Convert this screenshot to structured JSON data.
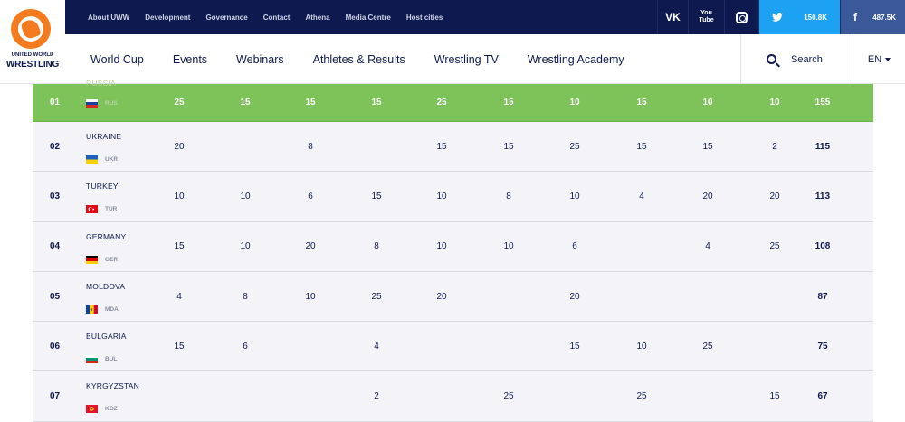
{
  "header": {
    "logo_small": "UNITED WORLD",
    "logo_big": "WRESTLING",
    "top_links": [
      "About UWW",
      "Development",
      "Governance",
      "Contact",
      "Athena",
      "Media Centre",
      "Host cities"
    ],
    "social": {
      "vk_label": "VK",
      "youtube_label_1": "You",
      "youtube_label_2": "Tube",
      "twitter_icon": "twitter-icon",
      "twitter_count": "150.8K",
      "facebook_label": "f",
      "facebook_count": "487.5K"
    }
  },
  "nav": {
    "items": [
      "World Cup",
      "Events",
      "Webinars",
      "Athletes & Results",
      "Wrestling TV",
      "Wrestling Academy"
    ],
    "search_label": "Search",
    "lang_label": "EN"
  },
  "table": {
    "rows": [
      {
        "rank": "01",
        "country": "RUSSIA",
        "code": "RUS",
        "flag": "RUS",
        "scores": [
          "25",
          "15",
          "15",
          "15",
          "25",
          "15",
          "10",
          "15",
          "10",
          "10"
        ],
        "total": "155"
      },
      {
        "rank": "02",
        "country": "UKRAINE",
        "code": "UKR",
        "flag": "UKR",
        "scores": [
          "20",
          "",
          "8",
          "",
          "15",
          "15",
          "25",
          "15",
          "15",
          "2"
        ],
        "total": "115"
      },
      {
        "rank": "03",
        "country": "TURKEY",
        "code": "TUR",
        "flag": "TUR",
        "scores": [
          "10",
          "10",
          "6",
          "15",
          "10",
          "8",
          "10",
          "4",
          "20",
          "20"
        ],
        "total": "113"
      },
      {
        "rank": "04",
        "country": "GERMANY",
        "code": "GER",
        "flag": "GER",
        "scores": [
          "15",
          "10",
          "20",
          "8",
          "10",
          "10",
          "6",
          "",
          "4",
          "25"
        ],
        "total": "108"
      },
      {
        "rank": "05",
        "country": "MOLDOVA",
        "code": "MDA",
        "flag": "MDA",
        "scores": [
          "4",
          "8",
          "10",
          "25",
          "20",
          "",
          "20",
          "",
          "",
          ""
        ],
        "total": "87"
      },
      {
        "rank": "06",
        "country": "BULGARIA",
        "code": "BUL",
        "flag": "BUL",
        "scores": [
          "15",
          "6",
          "",
          "4",
          "",
          "",
          "15",
          "10",
          "25",
          ""
        ],
        "total": "75"
      },
      {
        "rank": "07",
        "country": "KYRGYZSTAN",
        "code": "KGZ",
        "flag": "KGZ",
        "scores": [
          "",
          "",
          "",
          "2",
          "",
          "25",
          "",
          "25",
          "",
          "15"
        ],
        "total": "67"
      }
    ]
  },
  "colors": {
    "navy": "#0e1a4f",
    "highlight_green": "#7dc35a",
    "row_bg": "#f3f3f8",
    "twitter_blue": "#1da1f2",
    "facebook_blue": "#3b5998",
    "brand_orange": "#f47b20"
  }
}
